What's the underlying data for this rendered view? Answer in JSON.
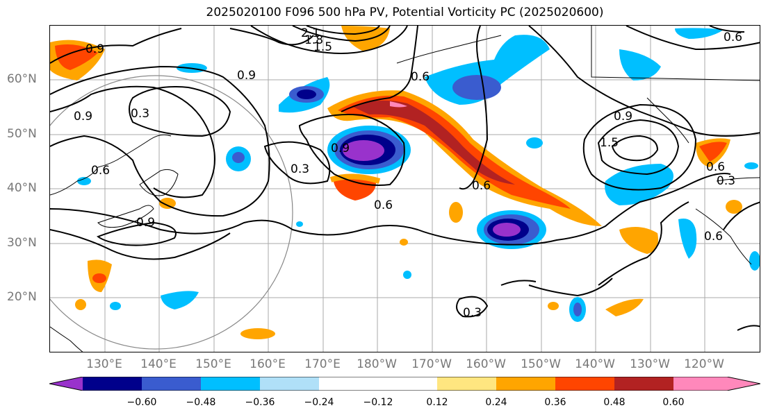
{
  "title": "2025020100 F096 500 hPa PV, Potential Vorticity PC (2025020600)",
  "lat_labels": [
    "60°N",
    "50°N",
    "40°N",
    "30°N",
    "20°N"
  ],
  "lon_labels": [
    "130°E",
    "140°E",
    "150°E",
    "160°E",
    "170°E",
    "180°W",
    "170°W",
    "160°W",
    "150°W",
    "140°W",
    "130°W",
    "120°W"
  ],
  "contour_labels": [
    "0.9",
    "2.1",
    "1.8",
    "1.5",
    "0.9",
    "0.9",
    "0.3",
    "0.6",
    "0.6",
    "0.9",
    "0.3",
    "0.6",
    "0.6",
    "0.9",
    "1.5",
    "0.6",
    "0.9",
    "0.6",
    "0.3",
    "0.3",
    "0.6"
  ],
  "colorbar": {
    "colors": [
      "#9932cc",
      "#00008b",
      "#3a5ccf",
      "#00bfff",
      "#b0e0f8",
      "#ffffff",
      "#ffffff",
      "#ffe680",
      "#ffa500",
      "#ff4500",
      "#b22222",
      "#ff88bb"
    ],
    "tick_labels": [
      "−0.60",
      "−0.48",
      "−0.36",
      "−0.24",
      "−0.12",
      "0.12",
      "0.24",
      "0.36",
      "0.48",
      "0.60"
    ]
  }
}
